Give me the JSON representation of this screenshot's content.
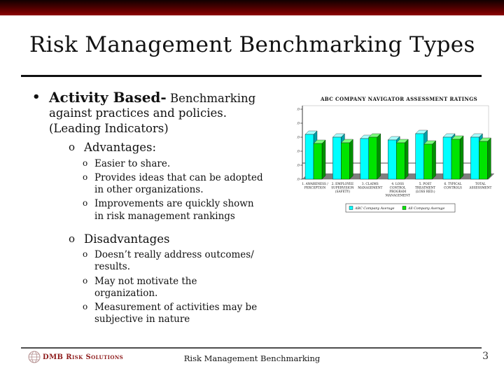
{
  "slide": {
    "title": "Risk Management Benchmarking Types",
    "bullet_l1": "•",
    "bullet_l2": "o",
    "bullet_l3": "o"
  },
  "content": {
    "heading_bold": "Activity Based-",
    "heading_rest": " Benchmarking against practices and policies. (Leading Indicators)",
    "advantages": {
      "label": "Advantages:",
      "items": [
        "Easier to share.",
        "Provides ideas that can be adopted in other organizations.",
        "Improvements are quickly shown in risk management rankings"
      ]
    },
    "disadvantages": {
      "label": "Disadvantages",
      "items": [
        "Doesn’t really address outcomes/ results.",
        "May not motivate the organization.",
        "Measurement of activities may be subjective in nature"
      ]
    }
  },
  "chart_data": {
    "type": "bar",
    "variant": "3d-clustered",
    "title": "ABC COMPANY NAVIGATOR ASSESSMENT RATINGS",
    "categories": [
      "1. AWARENESS /\nPERCEPTION",
      "2. EMPLOYEE\nSUPERVISION\n(SAFETY)",
      "3. CLAIMS\nMANAGEMENT",
      "4. LOSS\nCONTROL\nPROGRAM\nMANAGEMENT",
      "5. POST\nTREATMENT\n(LOSS RED.)",
      "6. TYPICAL\nCONTROLS",
      "TOTAL\nASSESSMENT"
    ],
    "series": [
      {
        "name": "ABC Company Average",
        "color": "#00ffff",
        "top": "#aaffff",
        "side": "#00a0a8",
        "values": [
          3.2,
          3.0,
          2.9,
          2.8,
          3.25,
          3.0,
          3.0
        ]
      },
      {
        "name": "All Company Average",
        "color": "#00e400",
        "top": "#7dff7d",
        "side": "#009000",
        "values": [
          2.55,
          2.6,
          3.0,
          2.6,
          2.5,
          2.85,
          2.7
        ]
      }
    ],
    "ylim": [
      0,
      5
    ],
    "ytick_labels": [
      "0.0",
      "1.0",
      "2.0",
      "3.0",
      "4.0",
      "5.0"
    ],
    "reference_line": 1.15,
    "legend_position": "bottom",
    "floor_color": "#7f7f7f"
  },
  "footer": {
    "logo_text": "DMB Risk Solutions",
    "center_text": "Risk Management Benchmarking",
    "page_number": "3"
  },
  "colors": {
    "accent_bar_dark": "#120000",
    "accent_bar_red": "#8e0303",
    "logo_red": "#8e1b1b"
  }
}
